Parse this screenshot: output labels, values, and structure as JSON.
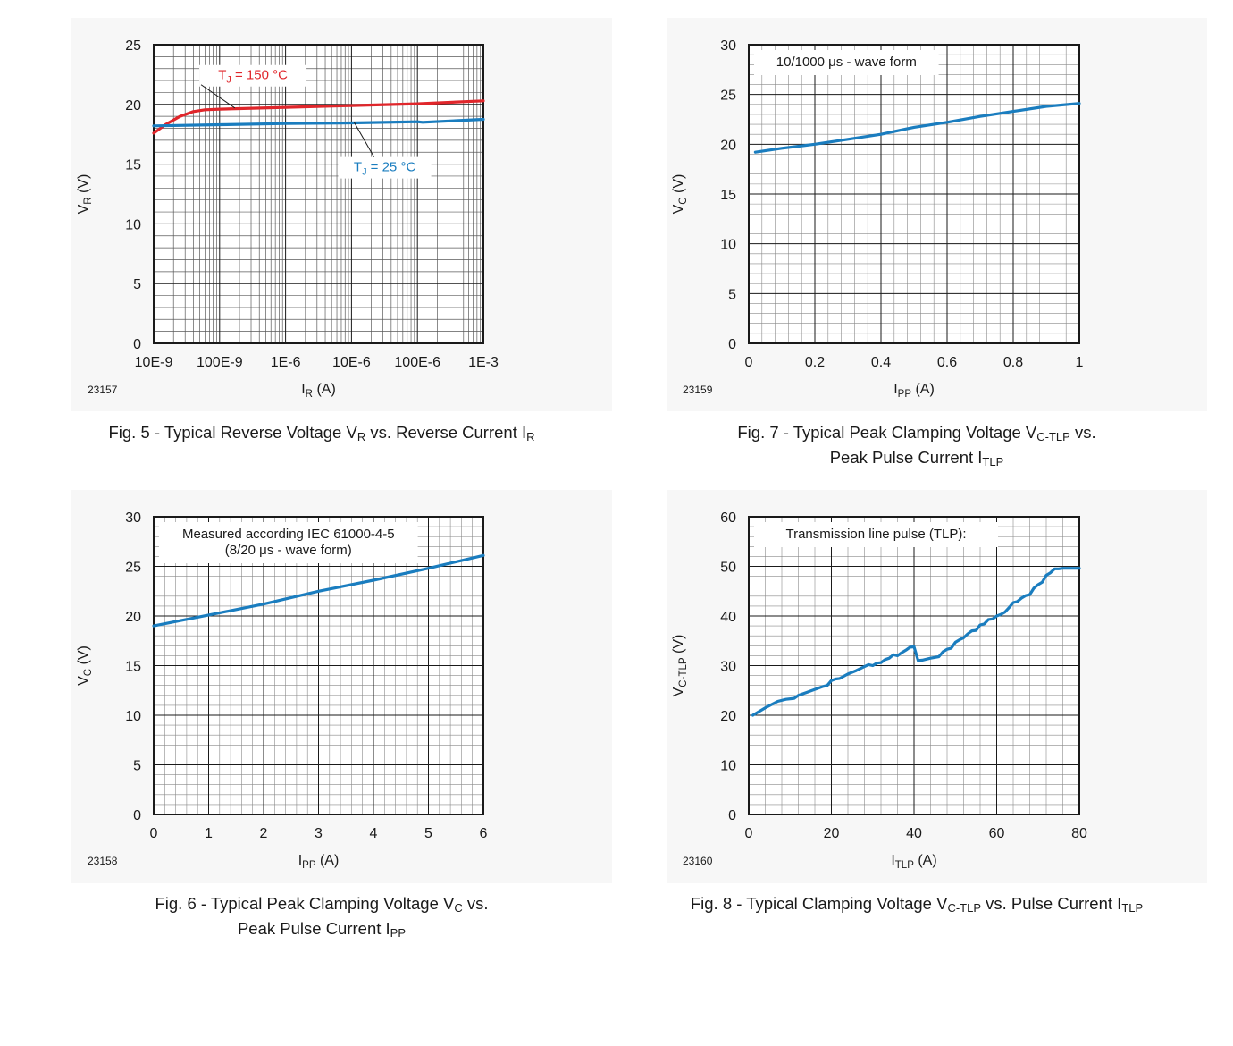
{
  "chart_data": [
    {
      "id": "fig5",
      "type": "line",
      "x_scale": "log",
      "figure_number": "23157",
      "caption": {
        "pre": "Fig. 5 - Typical Reverse Voltage V",
        "s1": "R",
        "mid": " vs. Reverse Current I",
        "s2": "R"
      },
      "xlabel": {
        "main": "I",
        "sub": "R",
        "unit": " (A)"
      },
      "ylabel": {
        "main": "V",
        "sub": "R",
        "unit": " (V)"
      },
      "xlim": [
        1e-08,
        0.001
      ],
      "ylim": [
        0,
        25
      ],
      "xticks": [
        1e-08,
        1e-07,
        1e-06,
        1e-05,
        0.0001,
        0.001
      ],
      "xtick_labels": [
        "10E-9",
        "100E-9",
        "1E-6",
        "10E-6",
        "100E-6",
        "1E-3"
      ],
      "yticks": [
        0,
        5,
        10,
        15,
        20,
        25
      ],
      "ytick_labels": [
        "0",
        "5",
        "10",
        "15",
        "20",
        "25"
      ],
      "series": [
        {
          "name": {
            "main": "T",
            "sub": "J",
            "rest": " = 150 °C"
          },
          "color": "#e0262b",
          "x": [
            1e-08,
            1.5e-08,
            2.5e-08,
            4e-08,
            6e-08,
            1e-07,
            1e-06,
            1e-05,
            0.0001,
            0.001
          ],
          "y": [
            17.6,
            18.3,
            19.0,
            19.4,
            19.55,
            19.6,
            19.75,
            19.9,
            20.05,
            20.3
          ]
        },
        {
          "name": {
            "main": "T",
            "sub": "J",
            "rest": " = 25 °C"
          },
          "color": "#1a7dbf",
          "x": [
            1e-08,
            1e-07,
            1e-06,
            1e-05,
            0.0001,
            0.00012,
            0.001
          ],
          "y": [
            18.2,
            18.3,
            18.4,
            18.45,
            18.55,
            18.5,
            18.75
          ]
        }
      ]
    },
    {
      "id": "fig7",
      "type": "line",
      "x_scale": "linear",
      "figure_number": "23159",
      "caption": {
        "pre": "Fig. 7 - Typical Peak Clamping Voltage V",
        "s1": "C-TLP",
        "mid": " vs.",
        "line2": "Peak Pulse Current I",
        "s2": "TLP"
      },
      "annotation": [
        "10/1000 μs - wave form"
      ],
      "xlabel": {
        "main": "I",
        "sub": "PP",
        "unit": " (A)"
      },
      "ylabel": {
        "main": "V",
        "sub": "C",
        "unit": " (V)"
      },
      "xlim": [
        0,
        1
      ],
      "ylim": [
        0,
        30
      ],
      "xticks": [
        0,
        0.2,
        0.4,
        0.6,
        0.8,
        1
      ],
      "xtick_labels": [
        "0",
        "0.2",
        "0.4",
        "0.6",
        "0.8",
        "1"
      ],
      "yticks": [
        0,
        5,
        10,
        15,
        20,
        25,
        30
      ],
      "ytick_labels": [
        "0",
        "5",
        "10",
        "15",
        "20",
        "25",
        "30"
      ],
      "series": [
        {
          "color": "#1a7dbf",
          "x": [
            0.02,
            0.1,
            0.2,
            0.3,
            0.4,
            0.5,
            0.6,
            0.7,
            0.8,
            0.9,
            1.0
          ],
          "y": [
            19.2,
            19.6,
            20.0,
            20.5,
            21.0,
            21.7,
            22.2,
            22.8,
            23.3,
            23.8,
            24.1
          ]
        }
      ]
    },
    {
      "id": "fig6",
      "type": "line",
      "x_scale": "linear",
      "figure_number": "23158",
      "caption": {
        "pre": "Fig. 6 - Typical Peak Clamping Voltage V",
        "s1": "C",
        "mid": " vs.",
        "line2": "Peak Pulse Current I",
        "s2": "PP"
      },
      "annotation": [
        "Measured according IEC 61000-4-5",
        "(8/20 μs - wave form)"
      ],
      "xlabel": {
        "main": "I",
        "sub": "PP",
        "unit": " (A)"
      },
      "ylabel": {
        "main": "V",
        "sub": "C",
        "unit": " (V)"
      },
      "xlim": [
        0,
        6
      ],
      "ylim": [
        0,
        30
      ],
      "xticks": [
        0,
        1,
        2,
        3,
        4,
        5,
        6
      ],
      "xtick_labels": [
        "0",
        "1",
        "2",
        "3",
        "4",
        "5",
        "6"
      ],
      "yticks": [
        0,
        5,
        10,
        15,
        20,
        25,
        30
      ],
      "ytick_labels": [
        "0",
        "5",
        "10",
        "15",
        "20",
        "25",
        "30"
      ],
      "series": [
        {
          "color": "#1a7dbf",
          "x": [
            0,
            1,
            2,
            3,
            4,
            5,
            6
          ],
          "y": [
            19.0,
            20.1,
            21.2,
            22.5,
            23.6,
            24.8,
            26.1
          ]
        }
      ]
    },
    {
      "id": "fig8",
      "type": "line",
      "x_scale": "linear",
      "figure_number": "23160",
      "caption": {
        "pre": "Fig. 8 - Typical Clamping Voltage V",
        "s1": "C-TLP",
        "mid": " vs. Pulse Current I",
        "s2": "TLP"
      },
      "annotation": [
        "Transmission line pulse (TLP):"
      ],
      "xlabel": {
        "main": "I",
        "sub": "TLP",
        "unit": " (A)"
      },
      "ylabel": {
        "main": "V",
        "sub": "C-TLP",
        "unit": " (V)"
      },
      "xlim": [
        0,
        80
      ],
      "ylim": [
        0,
        60
      ],
      "xticks": [
        0,
        20,
        40,
        60,
        80
      ],
      "xtick_labels": [
        "0",
        "20",
        "40",
        "60",
        "80"
      ],
      "yticks": [
        0,
        10,
        20,
        30,
        40,
        50,
        60
      ],
      "ytick_labels": [
        "0",
        "10",
        "20",
        "30",
        "40",
        "50",
        "60"
      ],
      "series": [
        {
          "color": "#1a7dbf",
          "x": [
            1,
            4,
            7,
            9,
            11,
            12,
            14,
            16,
            18,
            19,
            20,
            21,
            22,
            24,
            26,
            28,
            29,
            30,
            31,
            32,
            33,
            34,
            35,
            36,
            37,
            38,
            39,
            40,
            41,
            42,
            43,
            44,
            46,
            47,
            48,
            49,
            50,
            51,
            52,
            53,
            54,
            55,
            56,
            57,
            58,
            59,
            60,
            61,
            62,
            63,
            64,
            65,
            66,
            67,
            68,
            69,
            70,
            71,
            72,
            73,
            74,
            75,
            76,
            77,
            78,
            79,
            80
          ],
          "y": [
            20,
            21.5,
            22.8,
            23.2,
            23.4,
            24.0,
            24.6,
            25.2,
            25.8,
            26.0,
            27.0,
            27.3,
            27.4,
            28.3,
            29.0,
            29.8,
            30.2,
            30.0,
            30.5,
            30.6,
            31.2,
            31.5,
            32.2,
            32.0,
            32.6,
            33.1,
            33.7,
            33.8,
            31.0,
            31.1,
            31.3,
            31.5,
            31.8,
            32.8,
            33.3,
            33.5,
            34.7,
            35.2,
            35.6,
            36.4,
            37.0,
            37.1,
            38.2,
            38.4,
            39.3,
            39.4,
            40.0,
            40.3,
            40.8,
            41.7,
            42.7,
            42.9,
            43.6,
            44.1,
            44.3,
            45.6,
            46.3,
            46.8,
            48.2,
            48.7,
            49.5,
            49.5,
            49.6,
            49.6,
            49.6,
            49.6,
            49.6
          ]
        }
      ]
    }
  ]
}
